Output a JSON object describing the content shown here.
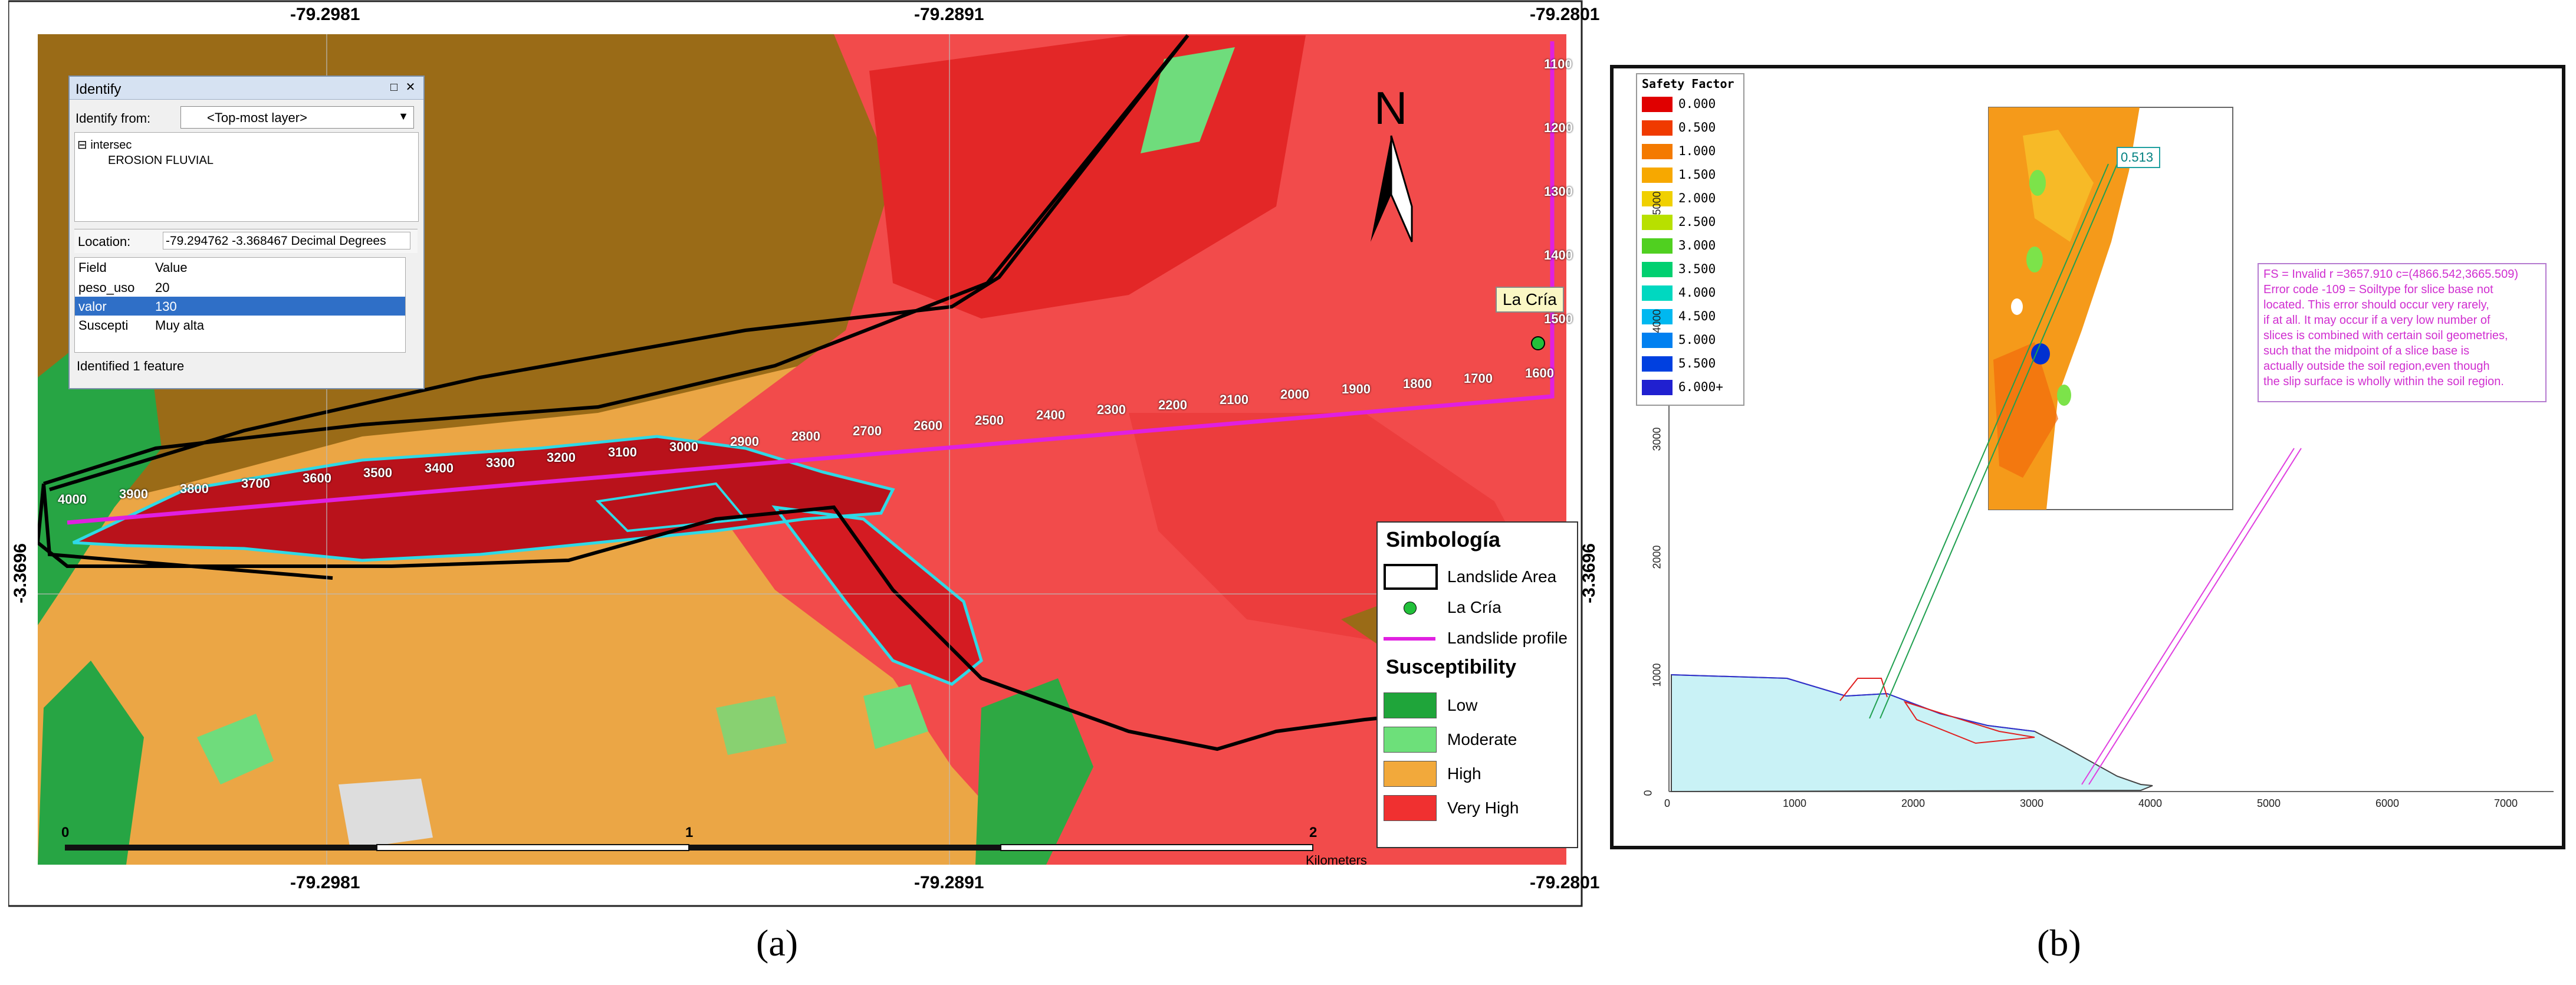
{
  "panel_a": {
    "label": "(a)",
    "coords": {
      "top": [
        "-79.2981",
        "-79.2891",
        "-79.2801"
      ],
      "bottom": [
        "-79.2981",
        "-79.2891",
        "-79.2801"
      ],
      "left": "-3.3696",
      "right": "-3.3696"
    },
    "north": "N",
    "place_label": "La Cría",
    "scalebar": {
      "ticks": [
        "0",
        "1",
        "2"
      ],
      "unit": "Kilometers"
    },
    "profile_labels": [
      "4000",
      "3900",
      "3800",
      "3700",
      "3600",
      "3500",
      "3400",
      "3300",
      "3200",
      "3100",
      "3000",
      "2900",
      "2800",
      "2700",
      "2600",
      "2500",
      "2400",
      "2300",
      "2200",
      "2100",
      "2000",
      "1900",
      "1800",
      "1700",
      "1600"
    ],
    "right_labels": [
      "1100",
      "1200",
      "1300",
      "1400",
      "1500"
    ],
    "identify": {
      "title": "Identify",
      "identify_from_label": "Identify from:",
      "identify_from_value": "<Top-most layer>",
      "tree_root": "intersec",
      "tree_child": "EROSION FLUVIAL",
      "location_label": "Location:",
      "location_value": "-79.294762  -3.368467 Decimal Degrees",
      "columns": [
        "Field",
        "Value"
      ],
      "rows": [
        {
          "field": "peso_uso",
          "value": "20"
        },
        {
          "field": "valor",
          "value": "130"
        },
        {
          "field": "Suscepti",
          "value": "Muy alta"
        }
      ],
      "status": "Identified 1 feature"
    },
    "legend": {
      "title": "Simbología",
      "items": [
        {
          "label": "Landslide Area",
          "kind": "outline",
          "color": "#000000"
        },
        {
          "label": "La Cría",
          "kind": "dot",
          "color": "#22c03a"
        },
        {
          "label": "Landslide profile",
          "kind": "line",
          "color": "#e020e0"
        }
      ],
      "sub_title": "Susceptibility",
      "classes": [
        {
          "label": "Low",
          "color": "#1fa53a"
        },
        {
          "label": "Moderate",
          "color": "#6de07a"
        },
        {
          "label": "High",
          "color": "#f2a93b"
        },
        {
          "label": "Very High",
          "color": "#f03030"
        }
      ]
    }
  },
  "panel_b": {
    "label": "(b)",
    "sf_title": "Safety Factor",
    "sf_scale": [
      {
        "v": "0.000",
        "c": "#e00000"
      },
      {
        "v": "0.500",
        "c": "#f03a00"
      },
      {
        "v": "1.000",
        "c": "#f47a00"
      },
      {
        "v": "1.500",
        "c": "#f7a800"
      },
      {
        "v": "2.000",
        "c": "#f0d000"
      },
      {
        "v": "2.500",
        "c": "#b8e000"
      },
      {
        "v": "3.000",
        "c": "#50d020"
      },
      {
        "v": "3.500",
        "c": "#00d070"
      },
      {
        "v": "4.000",
        "c": "#00d8c0"
      },
      {
        "v": "4.500",
        "c": "#00b8f0"
      },
      {
        "v": "5.000",
        "c": "#0080f0"
      },
      {
        "v": "5.500",
        "c": "#0040e0"
      },
      {
        "v": "6.000+",
        "c": "#2020d0"
      }
    ],
    "min_fs": "0.513",
    "error_lines": [
      "FS = Invalid r =3657.910 c=(4866.542,3665.509)",
      "Error code -109 = Soiltype for slice base not",
      "located. This error should occur very rarely,",
      "if at all. It may occur if a very low number of",
      "slices is combined with certain soil geometries,",
      "such that the midpoint of a slice base is",
      "actually outside the soil region,even though",
      "the slip surface is wholly within the soil region."
    ],
    "x_ticks": [
      "0",
      "1000",
      "2000",
      "3000",
      "4000",
      "5000",
      "6000",
      "7000"
    ],
    "y_ticks": [
      "0",
      "1000",
      "2000",
      "3000",
      "4000",
      "5000"
    ]
  }
}
